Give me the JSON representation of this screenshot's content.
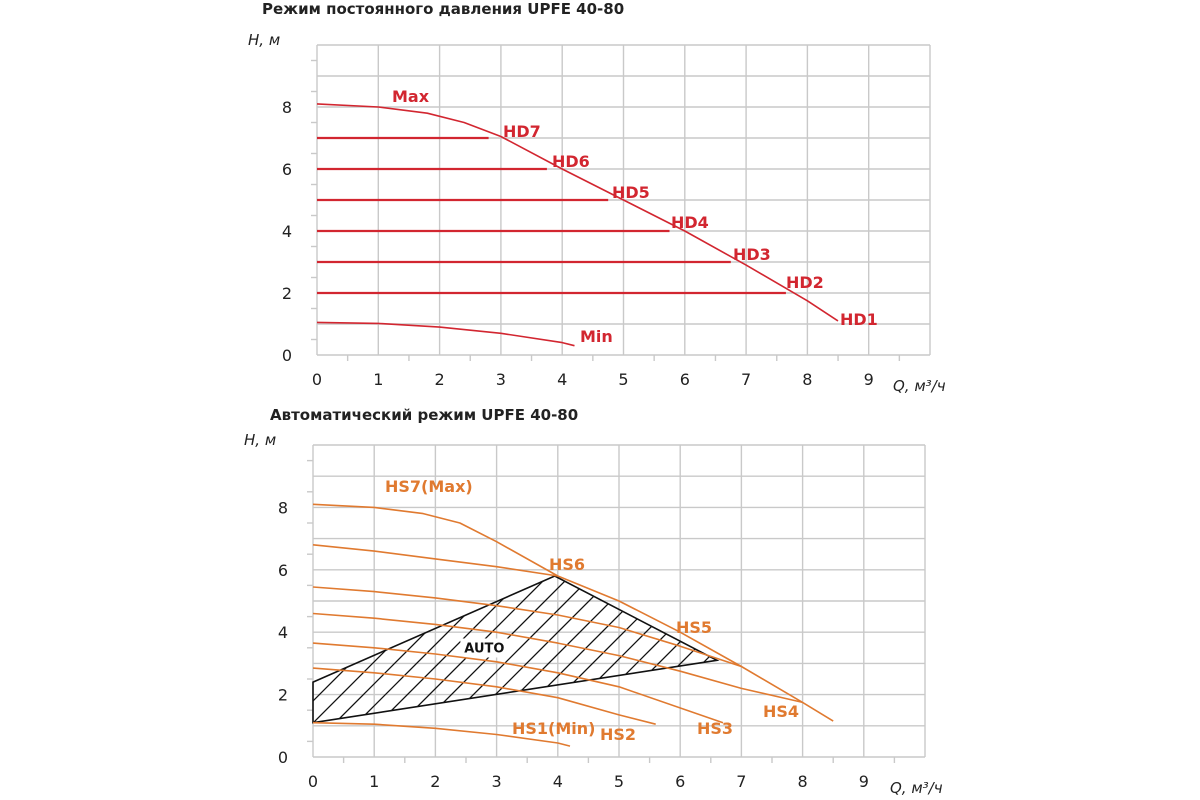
{
  "chart_data": [
    {
      "type": "line",
      "title": "Режим постоянного давления UPFE 40-80",
      "ylabel": "H, м",
      "xlabel": "Q, м³/ч",
      "xlim": [
        0,
        10
      ],
      "ylim": [
        0,
        10
      ],
      "xticks": [
        0,
        1,
        2,
        3,
        4,
        5,
        6,
        7,
        8,
        9
      ],
      "yticks": [
        0,
        2,
        4,
        6,
        8
      ],
      "grid": true,
      "series": [
        {
          "name": "Max",
          "color": "#d22630",
          "x": [
            0,
            1,
            1.8,
            2.4,
            3.0,
            4.0,
            5.0,
            6.0,
            7.0,
            8.0,
            8.5
          ],
          "y": [
            8.1,
            8.0,
            7.8,
            7.5,
            7.05,
            6.0,
            5.0,
            4.0,
            2.9,
            1.75,
            1.1
          ]
        },
        {
          "name": "HD7",
          "color": "#d22630",
          "x": [
            0,
            2.8
          ],
          "y": [
            7,
            7
          ]
        },
        {
          "name": "HD6",
          "color": "#d22630",
          "x": [
            0,
            3.75
          ],
          "y": [
            6,
            6
          ]
        },
        {
          "name": "HD5",
          "color": "#d22630",
          "x": [
            0,
            4.75
          ],
          "y": [
            5,
            5
          ]
        },
        {
          "name": "HD4",
          "color": "#d22630",
          "x": [
            0,
            5.75
          ],
          "y": [
            4,
            4
          ]
        },
        {
          "name": "HD3",
          "color": "#d22630",
          "x": [
            0,
            6.75
          ],
          "y": [
            3,
            3
          ]
        },
        {
          "name": "HD2",
          "color": "#d22630",
          "x": [
            0,
            7.65
          ],
          "y": [
            2,
            2
          ]
        },
        {
          "name": "HD1",
          "color": "#d22630",
          "x": [
            8.5
          ],
          "y": [
            1.1
          ]
        },
        {
          "name": "Min",
          "color": "#d22630",
          "x": [
            0,
            1,
            2,
            3,
            4,
            4.2
          ],
          "y": [
            1.05,
            1.02,
            0.9,
            0.7,
            0.4,
            0.3
          ]
        }
      ],
      "labels": {
        "Max": "Max",
        "HD7": "HD7",
        "HD6": "HD6",
        "HD5": "HD5",
        "HD4": "HD4",
        "HD3": "HD3",
        "HD2": "HD2",
        "HD1": "HD1",
        "Min": "Min"
      }
    },
    {
      "type": "line",
      "title": "Автоматический режим UPFE 40-80",
      "ylabel": "H, м",
      "xlabel": "Q, м³/ч",
      "xlim": [
        0,
        10
      ],
      "ylim": [
        0,
        10
      ],
      "xticks": [
        0,
        1,
        2,
        3,
        4,
        5,
        6,
        7,
        8,
        9
      ],
      "yticks": [
        0,
        2,
        4,
        6,
        8
      ],
      "grid": true,
      "series": [
        {
          "name": "HS7(Max)",
          "color": "#e07a30",
          "x": [
            0,
            1,
            1.8,
            2.4,
            3.0,
            4.0,
            5.0,
            6.0,
            7.0,
            8.0,
            8.5
          ],
          "y": [
            8.1,
            8.0,
            7.8,
            7.5,
            6.9,
            5.8,
            5.0,
            4.0,
            2.9,
            1.75,
            1.15
          ]
        },
        {
          "name": "HS6",
          "color": "#e07a30",
          "x": [
            0,
            1,
            2,
            3,
            4.0
          ],
          "y": [
            6.8,
            6.6,
            6.35,
            6.1,
            5.8
          ]
        },
        {
          "name": "HS5",
          "color": "#e07a30",
          "x": [
            0,
            1,
            2,
            3,
            4,
            5,
            6,
            7.0
          ],
          "y": [
            5.45,
            5.3,
            5.1,
            4.85,
            4.55,
            4.15,
            3.55,
            2.9
          ]
        },
        {
          "name": "HS4",
          "color": "#e07a30",
          "x": [
            0,
            1,
            2,
            3,
            4,
            5,
            6,
            7,
            8.0
          ],
          "y": [
            4.6,
            4.45,
            4.25,
            4.0,
            3.65,
            3.25,
            2.75,
            2.2,
            1.75
          ]
        },
        {
          "name": "HS3",
          "color": "#e07a30",
          "x": [
            0,
            1,
            2,
            3,
            4,
            5,
            6.7
          ],
          "y": [
            3.65,
            3.5,
            3.3,
            3.05,
            2.7,
            2.25,
            1.1
          ]
        },
        {
          "name": "HS2",
          "color": "#e07a30",
          "x": [
            0,
            1,
            2,
            3,
            4,
            5,
            5.6
          ],
          "y": [
            2.85,
            2.7,
            2.5,
            2.25,
            1.9,
            1.35,
            1.05
          ]
        },
        {
          "name": "HS1(Min)",
          "color": "#e07a30",
          "x": [
            0,
            1,
            2,
            3,
            4,
            4.2
          ],
          "y": [
            1.1,
            1.05,
            0.92,
            0.72,
            0.45,
            0.35
          ]
        }
      ],
      "auto_region": {
        "label": "AUTO",
        "color": "#111111",
        "polygon": [
          [
            0,
            2.4
          ],
          [
            3.95,
            5.8
          ],
          [
            6.6,
            3.1
          ],
          [
            0,
            1.1
          ]
        ]
      },
      "labels": {
        "HS7": "HS7(Max)",
        "HS6": "HS6",
        "HS5": "HS5",
        "HS4": "HS4",
        "HS3": "HS3",
        "HS2": "HS2",
        "HS1": "HS1(Min)"
      }
    }
  ]
}
